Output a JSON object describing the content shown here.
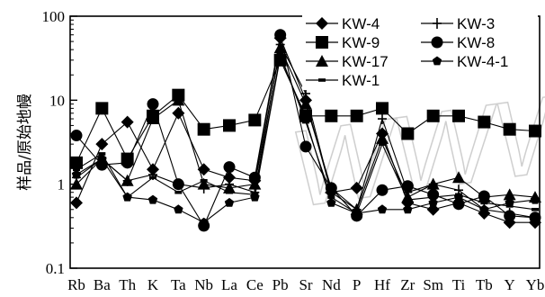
{
  "chart_data": {
    "type": "line",
    "title": "",
    "xlabel": "",
    "ylabel": "样品/原始地幔",
    "yscale": "log",
    "ylim": [
      0.1,
      100
    ],
    "yticks": [
      {
        "value": 0.1,
        "label": "0.1"
      },
      {
        "value": 1,
        "label": "1"
      },
      {
        "value": 10,
        "label": "10"
      },
      {
        "value": 100,
        "label": "100"
      }
    ],
    "grid": false,
    "legend_position": "top",
    "categories": [
      "Rb",
      "Ba",
      "Th",
      "K",
      "Ta",
      "Nb",
      "La",
      "Ce",
      "Pb",
      "Sr",
      "Nd",
      "P",
      "Hf",
      "Zr",
      "Sm",
      "Ti",
      "Tb",
      "Y",
      "Yb"
    ],
    "series": [
      {
        "name": "KW-4",
        "marker": "diamond",
        "values": [
          0.6,
          3.0,
          5.5,
          1.5,
          7.0,
          1.5,
          1.2,
          1.1,
          55,
          10,
          0.8,
          0.9,
          4.0,
          0.6,
          0.5,
          0.6,
          0.45,
          0.35,
          0.35
        ]
      },
      {
        "name": "KW-9",
        "marker": "square",
        "values": [
          1.8,
          8.0,
          2.0,
          6.5,
          11.5,
          4.5,
          5.0,
          5.8,
          30,
          6.5,
          6.5,
          6.5,
          8.0,
          4.0,
          6.5,
          6.5,
          5.5,
          4.5,
          4.3
        ]
      },
      {
        "name": "KW-17",
        "marker": "triangle",
        "values": [
          1.0,
          2.0,
          1.1,
          6.0,
          10.0,
          1.0,
          0.9,
          1.0,
          42,
          9,
          0.9,
          0.5,
          3.5,
          0.7,
          1.0,
          1.2,
          0.7,
          0.75,
          0.7
        ]
      },
      {
        "name": "KW-1",
        "marker": "dash",
        "values": [
          1.5,
          2.3,
          0.7,
          1.2,
          0.8,
          1.1,
          0.8,
          0.75,
          35,
          5.5,
          0.7,
          0.45,
          3.0,
          0.65,
          0.7,
          0.75,
          0.6,
          0.55,
          0.5
        ]
      },
      {
        "name": "KW-3",
        "marker": "plus",
        "values": [
          1.2,
          2.0,
          1.1,
          1.3,
          1.0,
          0.9,
          1.0,
          0.8,
          46,
          12,
          0.8,
          0.5,
          6.0,
          0.8,
          1.0,
          0.85,
          0.5,
          0.45,
          0.4
        ]
      },
      {
        "name": "KW-8",
        "marker": "circle",
        "values": [
          3.8,
          1.7,
          1.8,
          9.0,
          1.0,
          0.32,
          1.6,
          1.2,
          60,
          2.8,
          0.9,
          0.42,
          0.85,
          0.95,
          0.75,
          0.58,
          0.72,
          0.42,
          0.4
        ]
      },
      {
        "name": "KW-4-1",
        "marker": "pentagon",
        "values": [
          1.3,
          2.0,
          0.7,
          0.65,
          0.5,
          0.35,
          0.6,
          0.7,
          33,
          6.0,
          0.6,
          0.45,
          0.5,
          0.5,
          0.6,
          0.7,
          0.5,
          0.6,
          0.65
        ]
      }
    ]
  }
}
